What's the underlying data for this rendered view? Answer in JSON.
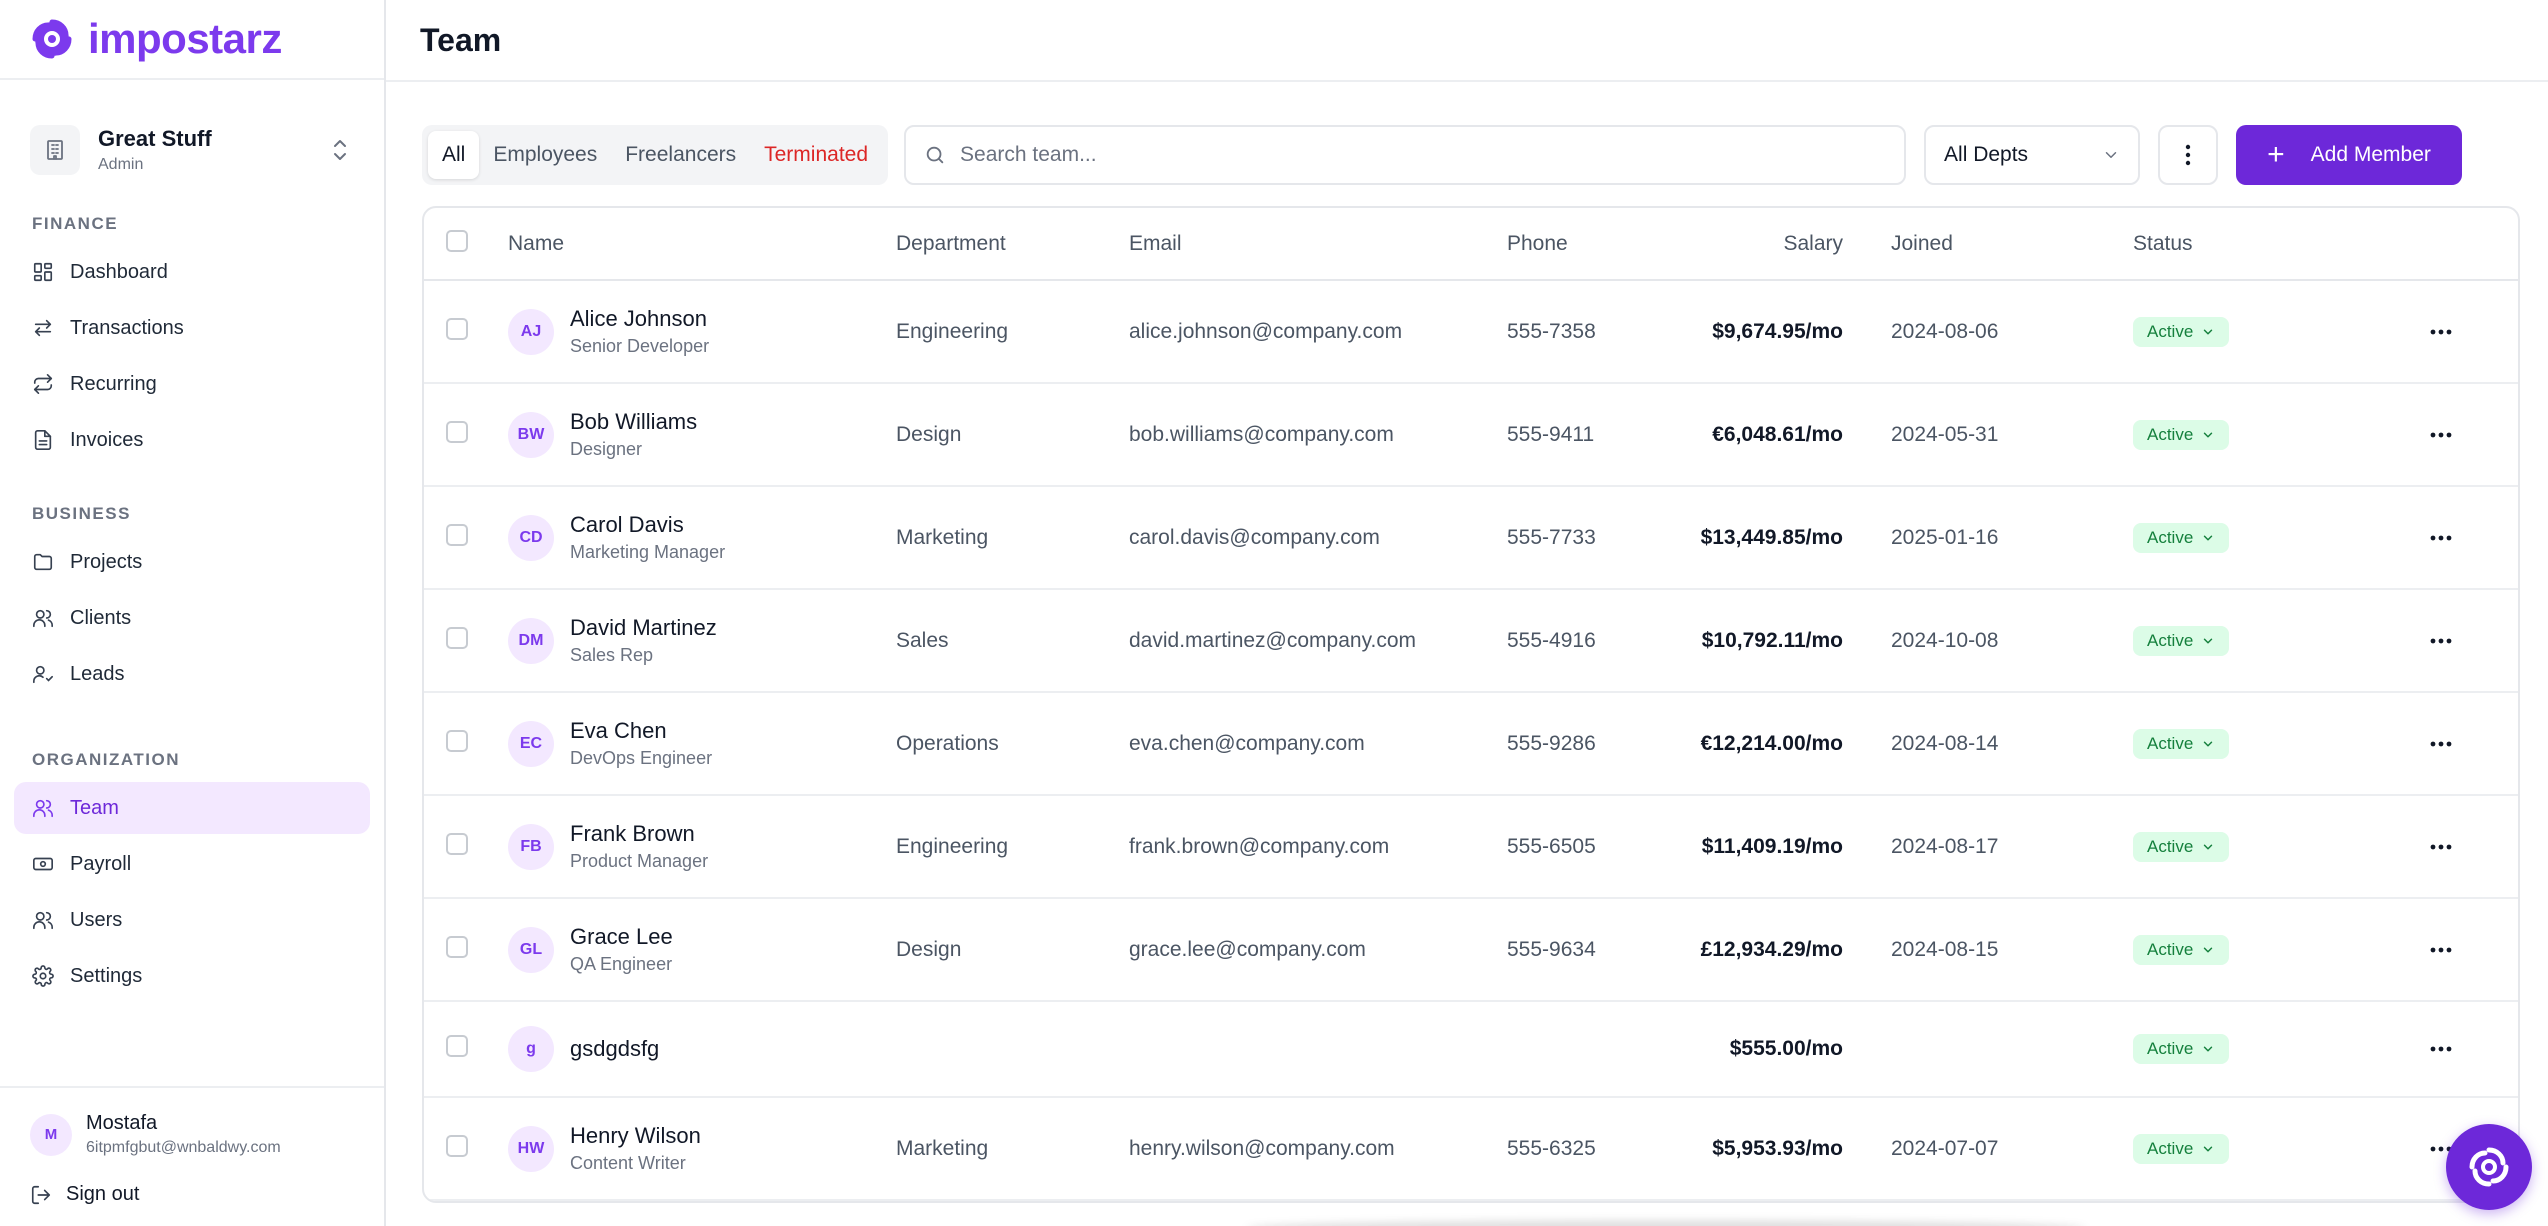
{
  "brand": {
    "name": "impostarz"
  },
  "org": {
    "name": "Great Stuff",
    "role": "Admin"
  },
  "sidebar": {
    "sections": [
      {
        "title": "FINANCE",
        "items": [
          {
            "label": "Dashboard",
            "icon": "dashboard-icon"
          },
          {
            "label": "Transactions",
            "icon": "transactions-icon"
          },
          {
            "label": "Recurring",
            "icon": "recurring-icon"
          },
          {
            "label": "Invoices",
            "icon": "invoice-icon"
          }
        ]
      },
      {
        "title": "BUSINESS",
        "items": [
          {
            "label": "Projects",
            "icon": "folder-icon"
          },
          {
            "label": "Clients",
            "icon": "clients-icon"
          },
          {
            "label": "Leads",
            "icon": "leads-icon"
          }
        ]
      },
      {
        "title": "ORGANIZATION",
        "items": [
          {
            "label": "Team",
            "icon": "team-icon",
            "active": true
          },
          {
            "label": "Payroll",
            "icon": "payroll-icon"
          },
          {
            "label": "Users",
            "icon": "users-icon"
          },
          {
            "label": "Settings",
            "icon": "gear-icon"
          }
        ]
      }
    ]
  },
  "user": {
    "initial": "M",
    "name": "Mostafa",
    "email": "6itpmfgbut@wnbaldwy.com",
    "signout_label": "Sign out"
  },
  "header": {
    "title": "Team"
  },
  "toolbar": {
    "tabs": [
      "All",
      "Employees",
      "Freelancers",
      "Terminated"
    ],
    "active_tab": "All",
    "search_placeholder": "Search team...",
    "search_value": "",
    "dept_select": "All Depts",
    "add_label": "Add Member"
  },
  "table": {
    "columns": [
      "Name",
      "Department",
      "Email",
      "Phone",
      "Salary",
      "Joined",
      "Status"
    ],
    "rows": [
      {
        "initials": "AJ",
        "name": "Alice Johnson",
        "role": "Senior Developer",
        "department": "Engineering",
        "email": "alice.johnson@company.com",
        "phone": "555-7358",
        "salary": "$9,674.95/mo",
        "joined": "2024-08-06",
        "status": "Active"
      },
      {
        "initials": "BW",
        "name": "Bob Williams",
        "role": "Designer",
        "department": "Design",
        "email": "bob.williams@company.com",
        "phone": "555-9411",
        "salary": "€6,048.61/mo",
        "joined": "2024-05-31",
        "status": "Active"
      },
      {
        "initials": "CD",
        "name": "Carol Davis",
        "role": "Marketing Manager",
        "department": "Marketing",
        "email": "carol.davis@company.com",
        "phone": "555-7733",
        "salary": "$13,449.85/mo",
        "joined": "2025-01-16",
        "status": "Active"
      },
      {
        "initials": "DM",
        "name": "David Martinez",
        "role": "Sales Rep",
        "department": "Sales",
        "email": "david.martinez@company.com",
        "phone": "555-4916",
        "salary": "$10,792.11/mo",
        "joined": "2024-10-08",
        "status": "Active"
      },
      {
        "initials": "EC",
        "name": "Eva Chen",
        "role": "DevOps Engineer",
        "department": "Operations",
        "email": "eva.chen@company.com",
        "phone": "555-9286",
        "salary": "€12,214.00/mo",
        "joined": "2024-08-14",
        "status": "Active"
      },
      {
        "initials": "FB",
        "name": "Frank Brown",
        "role": "Product Manager",
        "department": "Engineering",
        "email": "frank.brown@company.com",
        "phone": "555-6505",
        "salary": "$11,409.19/mo",
        "joined": "2024-08-17",
        "status": "Active"
      },
      {
        "initials": "GL",
        "name": "Grace Lee",
        "role": "QA Engineer",
        "department": "Design",
        "email": "grace.lee@company.com",
        "phone": "555-9634",
        "salary": "£12,934.29/mo",
        "joined": "2024-08-15",
        "status": "Active"
      },
      {
        "initials": "g",
        "name": "gsdgdsfg",
        "role": "",
        "department": "",
        "email": "",
        "phone": "",
        "salary": "$555.00/mo",
        "joined": "",
        "status": "Active"
      },
      {
        "initials": "HW",
        "name": "Henry Wilson",
        "role": "Content Writer",
        "department": "Marketing",
        "email": "henry.wilson@company.com",
        "phone": "555-6325",
        "salary": "$5,953.93/mo",
        "joined": "2024-07-07",
        "status": "Active"
      }
    ]
  },
  "colors": {
    "accent": "#6d28d9",
    "active_badge_bg": "#dcfce7",
    "active_badge_text": "#15803d",
    "danger": "#dc2626"
  }
}
